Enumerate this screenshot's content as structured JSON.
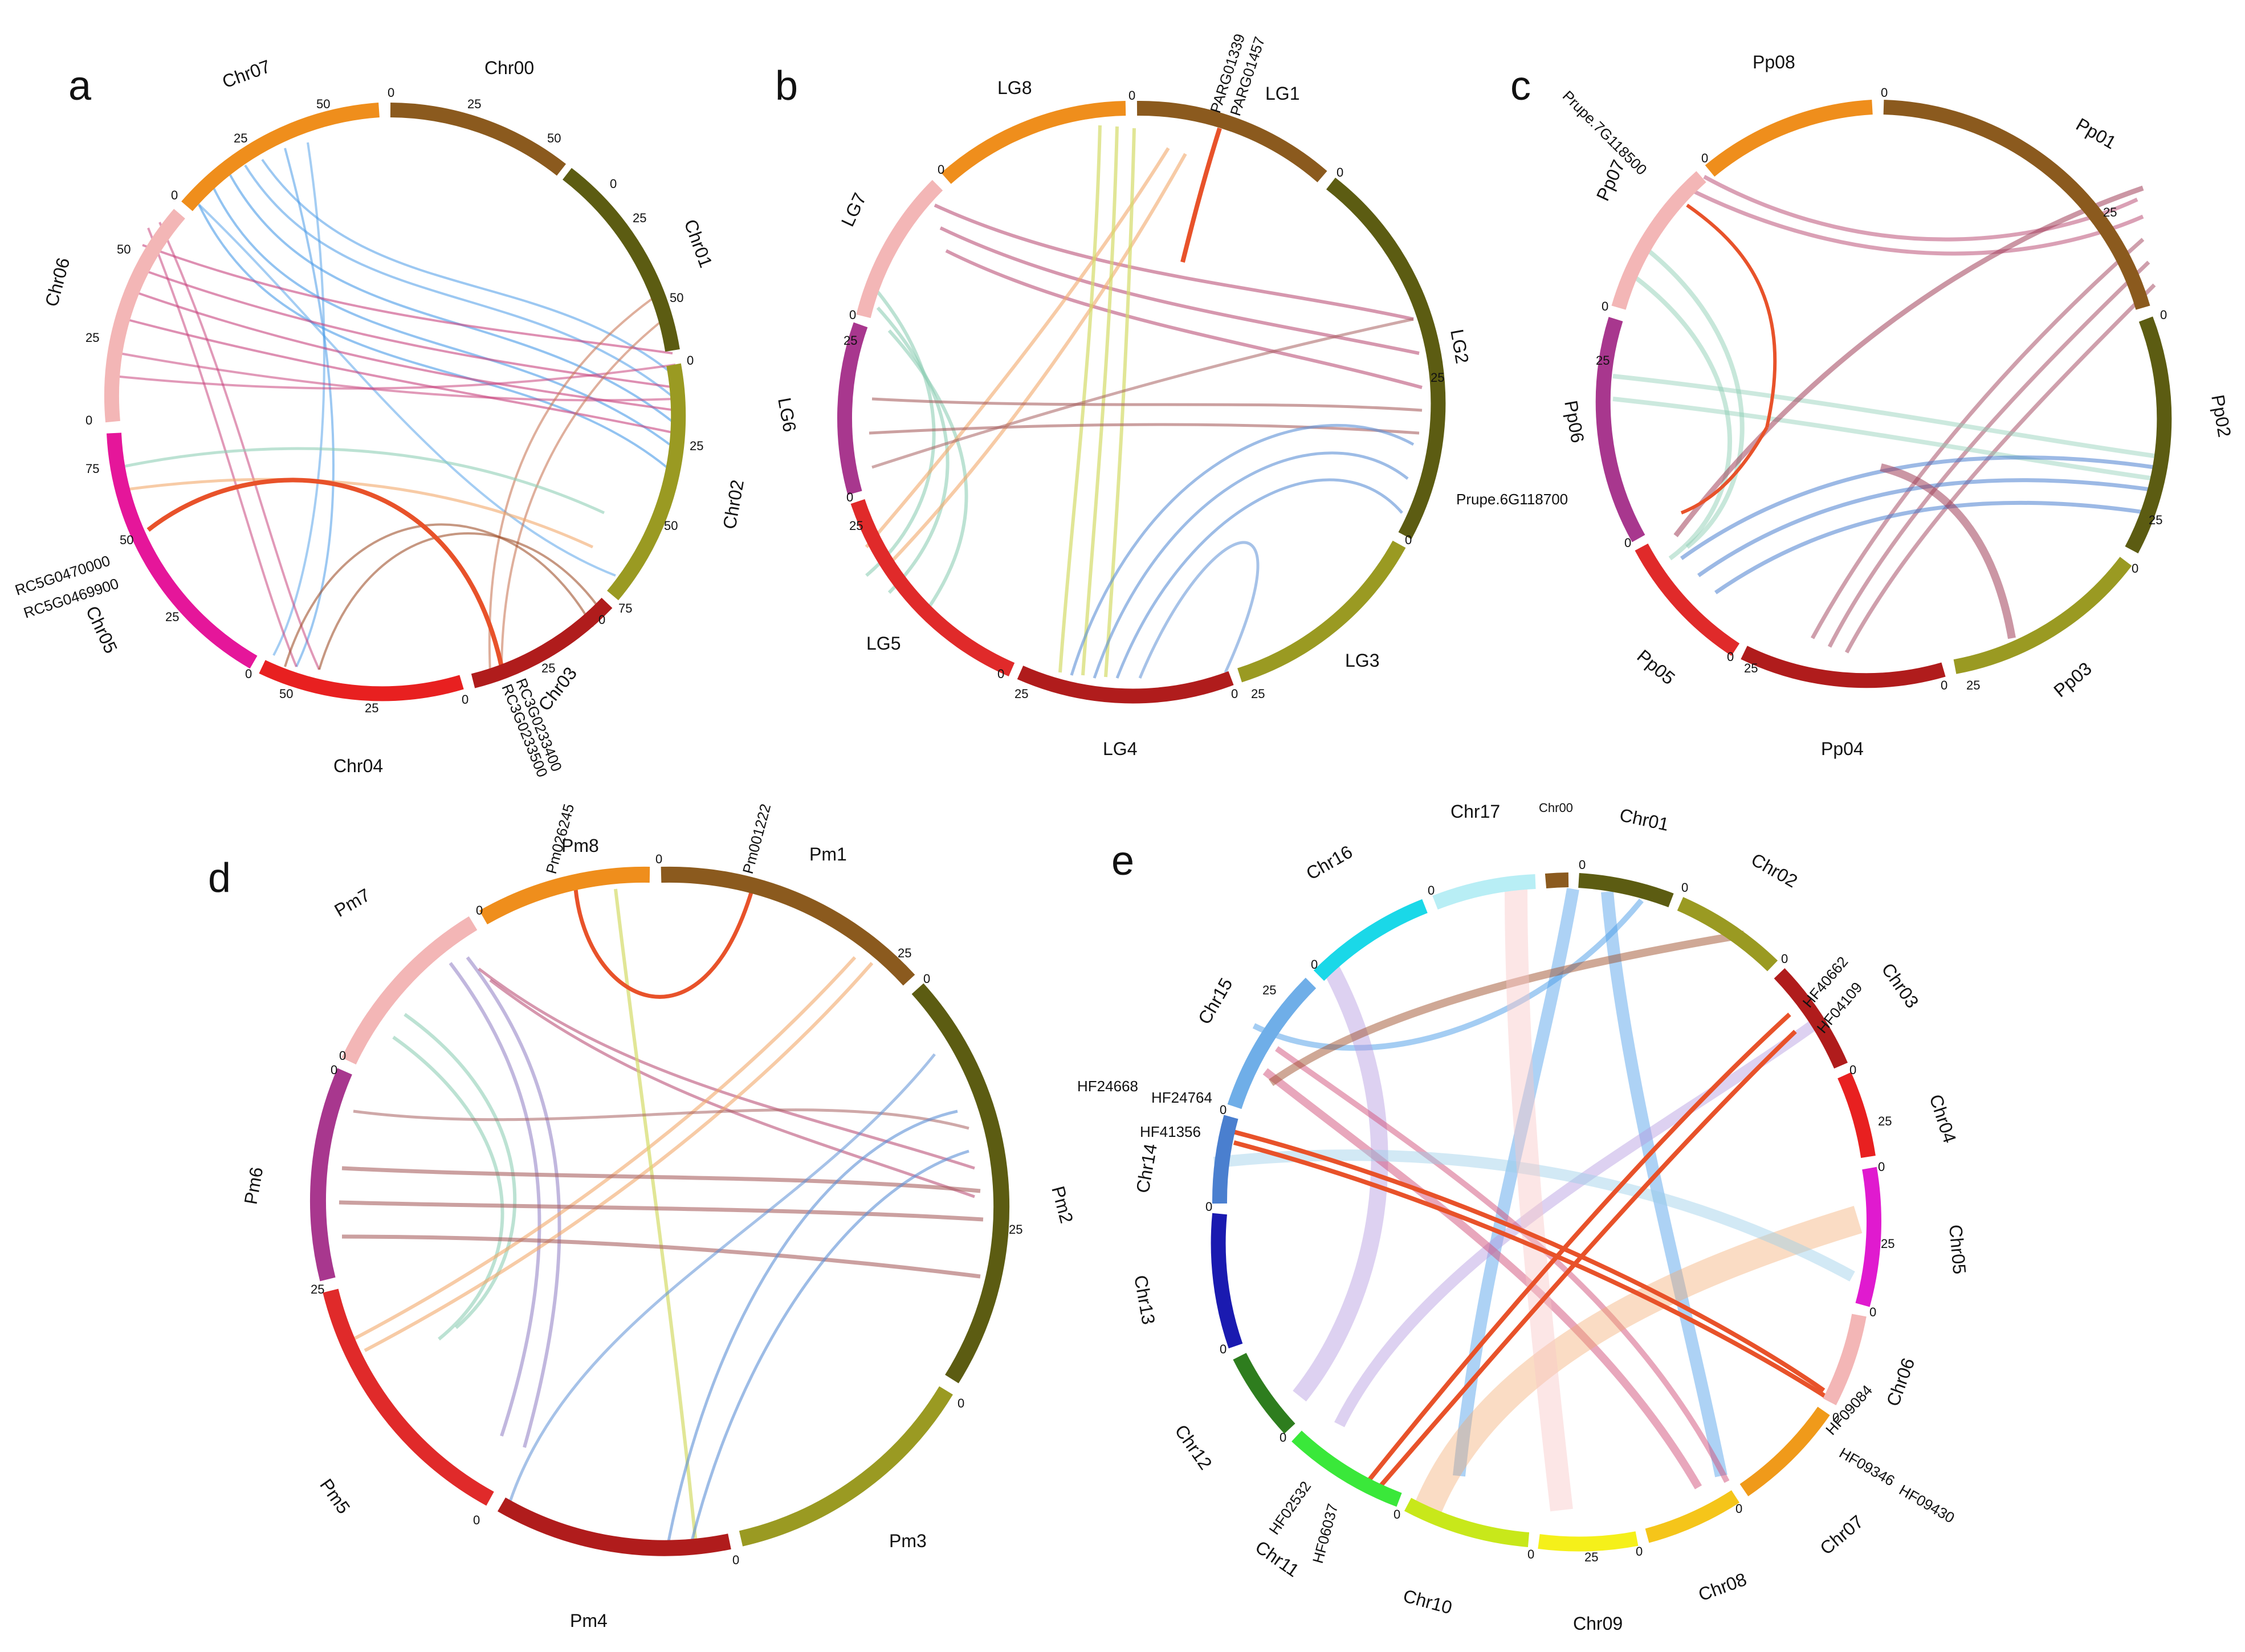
{
  "panels": [
    {
      "letter": "a",
      "chromosomes": [
        {
          "name": "Chr00",
          "color": "#8B5A1E",
          "ticks": [
            "0",
            "25",
            "50"
          ]
        },
        {
          "name": "Chr01",
          "color": "#5C5C12",
          "ticks": [
            "0",
            "25",
            "50"
          ]
        },
        {
          "name": "Chr02",
          "color": "#9A9A22",
          "ticks": [
            "0",
            "25",
            "50",
            "75"
          ]
        },
        {
          "name": "Chr03",
          "color": "#B01C1C",
          "ticks": [
            "0",
            "25"
          ]
        },
        {
          "name": "Chr04",
          "color": "#E82020",
          "ticks": [
            "0",
            "25",
            "50"
          ]
        },
        {
          "name": "Chr05",
          "color": "#E5169A",
          "ticks": [
            "0",
            "25",
            "50",
            "75"
          ]
        },
        {
          "name": "Chr06",
          "color": "#F3B6B6",
          "ticks": [
            "0",
            "25",
            "50"
          ]
        },
        {
          "name": "Chr07",
          "color": "#EF8E1C",
          "ticks": [
            "0",
            "25",
            "50"
          ]
        }
      ],
      "gene_labels": [
        "RC5G0470000",
        "RC5G0469900",
        "RC3G0233400",
        "RC3G0233500"
      ],
      "link_colors": [
        "#4A9BE8",
        "#C8457E",
        "#C97A5A",
        "#8FCFB5",
        "#F2A86B",
        "#A0522D"
      ],
      "highlight_color": "#E8522A"
    },
    {
      "letter": "b",
      "chromosomes": [
        {
          "name": "LG1",
          "color": "#8B5A1E",
          "ticks": [
            "0"
          ]
        },
        {
          "name": "LG2",
          "color": "#5C5C12",
          "ticks": [
            "0",
            "25"
          ]
        },
        {
          "name": "LG3",
          "color": "#9A9A22",
          "ticks": [
            "0",
            "25"
          ]
        },
        {
          "name": "LG4",
          "color": "#B01C1C",
          "ticks": [
            "0",
            "25"
          ]
        },
        {
          "name": "LG5",
          "color": "#E02A2A",
          "ticks": [
            "0",
            "25"
          ]
        },
        {
          "name": "LG6",
          "color": "#A8378E",
          "ticks": [
            "0",
            "25"
          ]
        },
        {
          "name": "LG7",
          "color": "#F3B6B6",
          "ticks": [
            "0"
          ]
        },
        {
          "name": "LG8",
          "color": "#EF8E1C",
          "ticks": [
            "0"
          ]
        }
      ],
      "gene_labels": [
        "PARG01339",
        "PARG01457"
      ],
      "link_colors": [
        "#B5416C",
        "#8FCFB5",
        "#F2A86B",
        "#5C8FD6",
        "#D4DC6A",
        "#A86060"
      ],
      "highlight_color": "#E8522A"
    },
    {
      "letter": "c",
      "chromosomes": [
        {
          "name": "Pp01",
          "color": "#8B5A1E",
          "ticks": [
            "0",
            "25"
          ]
        },
        {
          "name": "Pp02",
          "color": "#5C5C12",
          "ticks": [
            "0",
            "25"
          ]
        },
        {
          "name": "Pp03",
          "color": "#9A9A22",
          "ticks": [
            "0",
            "25"
          ]
        },
        {
          "name": "Pp04",
          "color": "#B01C1C",
          "ticks": [
            "0",
            "25"
          ]
        },
        {
          "name": "Pp05",
          "color": "#E02A2A",
          "ticks": [
            "0"
          ]
        },
        {
          "name": "Pp06",
          "color": "#A8378E",
          "ticks": [
            "0",
            "25"
          ]
        },
        {
          "name": "Pp07",
          "color": "#F3B6B6",
          "ticks": [
            "0"
          ]
        },
        {
          "name": "Pp08",
          "color": "#EF8E1C",
          "ticks": [
            "0"
          ]
        }
      ],
      "gene_labels": [
        "Prupe.7G118500",
        "Prupe.6G118700"
      ],
      "link_colors": [
        "#B5416C",
        "#8FCFB5",
        "#4A7FCF",
        "#A0405A",
        "#E9B7C8",
        "#C8E0C8"
      ],
      "highlight_color": "#E8522A"
    },
    {
      "letter": "d",
      "chromosomes": [
        {
          "name": "Pm1",
          "color": "#8B5A1E",
          "ticks": [
            "0",
            "25"
          ]
        },
        {
          "name": "Pm2",
          "color": "#5C5C12",
          "ticks": [
            "0",
            "25"
          ]
        },
        {
          "name": "Pm3",
          "color": "#9A9A22",
          "ticks": [
            "0"
          ]
        },
        {
          "name": "Pm4",
          "color": "#B01C1C",
          "ticks": [
            "0"
          ]
        },
        {
          "name": "Pm5",
          "color": "#E02A2A",
          "ticks": [
            "0",
            "25"
          ]
        },
        {
          "name": "Pm6",
          "color": "#A8378E",
          "ticks": [
            "0"
          ]
        },
        {
          "name": "Pm7",
          "color": "#F3B6B6",
          "ticks": [
            "0"
          ]
        },
        {
          "name": "Pm8",
          "color": "#EF8E1C",
          "ticks": [
            "0"
          ]
        }
      ],
      "gene_labels": [
        "Pm026245",
        "Pm001222"
      ],
      "link_colors": [
        "#B5416C",
        "#8FCFB5",
        "#F2A86B",
        "#5C8FD6",
        "#A86060",
        "#8E7CC3",
        "#D4DC6A"
      ],
      "highlight_color": "#E8522A"
    },
    {
      "letter": "e",
      "chromosomes": [
        {
          "name": "Chr00",
          "color": "#8B5A1E",
          "ticks": []
        },
        {
          "name": "Chr01",
          "color": "#5C5C12",
          "ticks": [
            "0"
          ]
        },
        {
          "name": "Chr02",
          "color": "#9A9A22",
          "ticks": [
            "0"
          ]
        },
        {
          "name": "Chr03",
          "color": "#B01C1C",
          "ticks": [
            "0"
          ]
        },
        {
          "name": "Chr04",
          "color": "#E82020",
          "ticks": [
            "0",
            "25"
          ]
        },
        {
          "name": "Chr05",
          "color": "#E01ACF",
          "ticks": [
            "0",
            "25"
          ]
        },
        {
          "name": "Chr06",
          "color": "#F3B6B6",
          "ticks": [
            "0"
          ]
        },
        {
          "name": "Chr07",
          "color": "#F09A1A",
          "ticks": [
            "0"
          ]
        },
        {
          "name": "Chr08",
          "color": "#F5C51A",
          "ticks": [
            "0"
          ]
        },
        {
          "name": "Chr09",
          "color": "#F5F01A",
          "ticks": [
            "0",
            "25"
          ]
        },
        {
          "name": "Chr10",
          "color": "#C8E81A",
          "ticks": [
            "0"
          ]
        },
        {
          "name": "Chr11",
          "color": "#3AE83A",
          "ticks": [
            "0"
          ]
        },
        {
          "name": "Chr12",
          "color": "#2E7D1E",
          "ticks": [
            "0"
          ]
        },
        {
          "name": "Chr13",
          "color": "#1A1AB0",
          "ticks": [
            "0"
          ]
        },
        {
          "name": "Chr14",
          "color": "#4A7FCF",
          "ticks": [
            "0"
          ]
        },
        {
          "name": "Chr15",
          "color": "#6FAEE8",
          "ticks": [
            "0",
            "25"
          ]
        },
        {
          "name": "Chr16",
          "color": "#1AD8E8",
          "ticks": [
            "0"
          ]
        },
        {
          "name": "Chr17",
          "color": "#B8EEF5",
          "ticks": [
            "0"
          ]
        }
      ],
      "gene_labels": [
        "HF40662",
        "HF04109",
        "HF24668",
        "HF24764",
        "HF41356",
        "HF09084",
        "HF09346",
        "HF09430",
        "HF02532",
        "HF06037"
      ],
      "link_colors": [
        "#4A9BE8",
        "#B49AE0",
        "#D1507A",
        "#F2A86B",
        "#9CCFE8",
        "#A0522D",
        "#F8C8C8"
      ],
      "highlight_color": "#E8522A"
    }
  ]
}
